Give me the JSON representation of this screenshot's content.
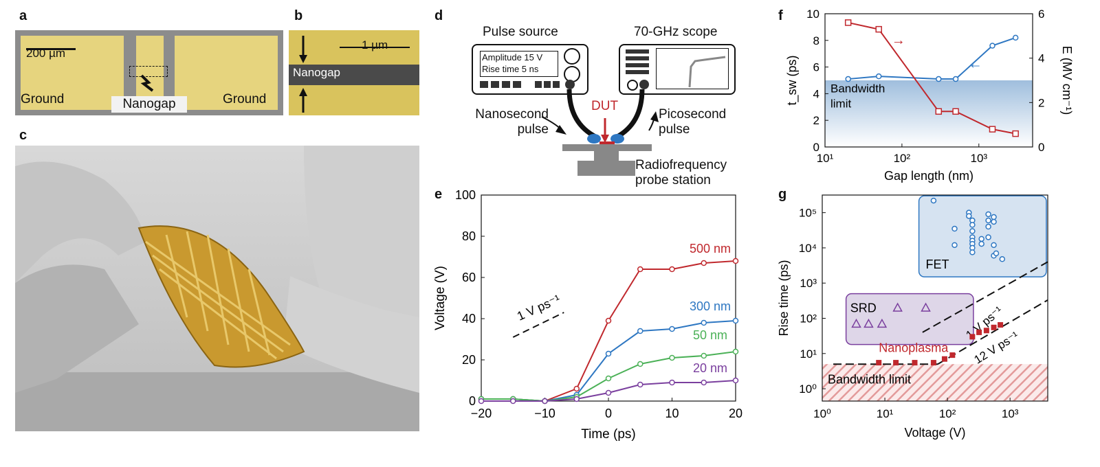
{
  "panel_letters": {
    "a": "a",
    "b": "b",
    "c": "c",
    "d": "d",
    "e": "e",
    "f": "f",
    "g": "g"
  },
  "panel_a": {
    "scale_bar": "200 µm",
    "ground_left": "Ground",
    "ground_right": "Ground",
    "nanogap": "Nanogap"
  },
  "panel_b": {
    "scale_bar": "1 µm",
    "nanogap": "Nanogap"
  },
  "panel_d": {
    "pulse_source": "Pulse source",
    "scope": "70-GHz scope",
    "amplitude": "Amplitude 15 V",
    "rise_time": "Rise time  5 ns",
    "dut": "DUT",
    "nanosecond_1": "Nanosecond",
    "nanosecond_2": "pulse",
    "picosecond_1": "Picosecond",
    "picosecond_2": "pulse",
    "probe_1": "Radiofrequency",
    "probe_2": "probe station"
  },
  "chart_data": [
    {
      "panel": "e",
      "type": "line",
      "xlabel": "Time (ps)",
      "ylabel": "Voltage (V)",
      "xlim": [
        -20,
        20
      ],
      "ylim": [
        0,
        100
      ],
      "xticks": [
        "−20",
        "−10",
        "0",
        "10",
        "20"
      ],
      "yticks": [
        "0",
        "20",
        "40",
        "60",
        "80",
        "100"
      ],
      "annotation": "1 V ps⁻¹",
      "x": [
        -20,
        -15,
        -10,
        -5,
        0,
        5,
        10,
        15,
        20
      ],
      "series": [
        {
          "name": "500 nm",
          "color": "#c0282d",
          "values": [
            1,
            1,
            0,
            6,
            39,
            64,
            64,
            67,
            68
          ]
        },
        {
          "name": "300 nm",
          "color": "#2e77c2",
          "values": [
            1,
            1,
            0,
            3,
            23,
            34,
            35,
            38,
            39
          ]
        },
        {
          "name": "50 nm",
          "color": "#4bb157",
          "values": [
            1,
            1,
            0,
            2,
            11,
            18,
            21,
            22,
            24
          ]
        },
        {
          "name": "20 nm",
          "color": "#7a3f9e",
          "values": [
            0,
            0,
            0,
            1,
            4,
            8,
            9,
            9,
            10
          ]
        }
      ]
    },
    {
      "panel": "f",
      "type": "line",
      "xlabel": "Gap length (nm)",
      "ylabel": "t_sw (ps)",
      "y2label": "E (MV cm⁻¹)",
      "xscale": "log",
      "xlim": [
        10,
        5000
      ],
      "ylim": [
        0,
        10
      ],
      "y2lim": [
        0,
        6
      ],
      "xticks": [
        "10¹",
        "10²",
        "10³"
      ],
      "yticks": [
        "0",
        "2",
        "4",
        "6",
        "8",
        "10"
      ],
      "y2ticks": [
        "0",
        "2",
        "4",
        "6"
      ],
      "annotation": "Bandwidth limit",
      "series": [
        {
          "name": "t_sw",
          "axis": "left",
          "color": "#2e77c2",
          "marker": "circle",
          "x": [
            20,
            50,
            300,
            500,
            1500,
            3000
          ],
          "values": [
            5.1,
            5.3,
            5.1,
            5.1,
            7.6,
            8.2
          ]
        },
        {
          "name": "E",
          "axis": "right",
          "color": "#c0282d",
          "marker": "square",
          "x": [
            20,
            50,
            300,
            500,
            1500,
            3000
          ],
          "values": [
            5.6,
            5.3,
            1.6,
            1.6,
            0.8,
            0.6
          ]
        }
      ]
    },
    {
      "panel": "g",
      "type": "scatter",
      "xlabel": "Voltage (V)",
      "ylabel": "Rise time (ps)",
      "xscale": "log",
      "yscale": "log",
      "xticks": [
        "10⁰",
        "10¹",
        "10²",
        "10³"
      ],
      "yticks": [
        "10⁰",
        "10¹",
        "10²",
        "10³",
        "10⁴",
        "10⁵"
      ],
      "labels": {
        "fet": "FET",
        "srd": "SRD",
        "nanoplasma": "Nanoplasma",
        "bandwidth": "Bandwidth limit",
        "line1": "1 V ps⁻¹",
        "line12": "12 V ps⁻¹"
      },
      "series": [
        {
          "name": "FET",
          "marker": "circle",
          "color": "#2e77c2",
          "x": [
            60,
            130,
            130,
            220,
            220,
            250,
            250,
            250,
            250,
            250,
            250,
            250,
            250,
            350,
            350,
            450,
            450,
            450,
            450,
            550,
            550,
            550,
            550,
            600,
            750
          ],
          "values": [
            220000,
            35000,
            12000,
            100000,
            80000,
            60000,
            45000,
            30000,
            20000,
            16000,
            13000,
            10000,
            7500,
            18000,
            13000,
            90000,
            60000,
            40000,
            20000,
            75000,
            55000,
            12000,
            6000,
            7000,
            4800
          ]
        },
        {
          "name": "SRD",
          "marker": "triangle",
          "color": "#7a3f9e",
          "x": [
            3.5,
            5.5,
            9,
            16,
            45
          ],
          "values": [
            70,
            70,
            70,
            200,
            200
          ]
        },
        {
          "name": "Nanoplasma",
          "marker": "square",
          "color": "#c0282d",
          "x": [
            8,
            15,
            30,
            60,
            90,
            120,
            250,
            320,
            420,
            550,
            700
          ],
          "values": [
            5.5,
            5.5,
            5.5,
            5.5,
            7,
            9,
            30,
            40,
            45,
            55,
            65
          ]
        }
      ]
    }
  ]
}
